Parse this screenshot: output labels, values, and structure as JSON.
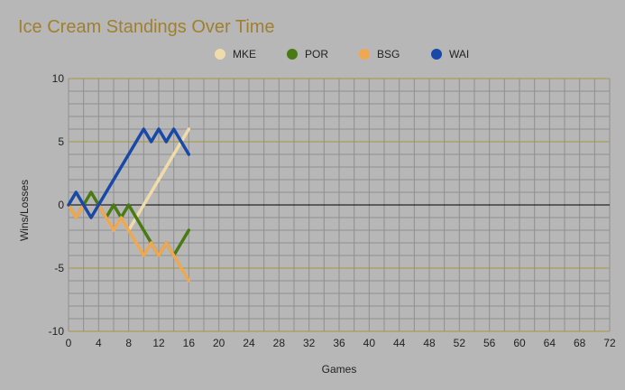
{
  "chart_data": {
    "type": "line",
    "title": "Ice Cream Standings Over Time",
    "xlabel": "Games",
    "ylabel": "Wins/Losses",
    "xlim": [
      0,
      72
    ],
    "ylim": [
      -10,
      10
    ],
    "x_ticks": [
      0,
      4,
      8,
      12,
      16,
      20,
      24,
      28,
      32,
      36,
      40,
      44,
      48,
      52,
      56,
      60,
      64,
      68,
      72
    ],
    "y_ticks": [
      10,
      5,
      0,
      -5,
      -10
    ],
    "grid": true,
    "legend_position": "top",
    "colors": {
      "background": "#b7b7b7",
      "major_grid": "#a89440",
      "minor_grid": "#8f8f8f",
      "zero_line": "#000000",
      "title": "#a08030"
    },
    "series": [
      {
        "name": "MKE",
        "color": "#f0dcaa",
        "x": [
          0,
          1,
          2,
          3,
          4,
          5,
          6,
          7,
          8,
          9,
          10,
          11,
          12,
          13,
          14,
          15,
          16
        ],
        "y": [
          0,
          -1,
          0,
          -1,
          0,
          -1,
          -2,
          -1,
          -2,
          -1,
          0,
          1,
          2,
          3,
          4,
          5,
          6
        ]
      },
      {
        "name": "POR",
        "color": "#4a7a14",
        "x": [
          0,
          1,
          2,
          3,
          4,
          5,
          6,
          7,
          8,
          9,
          10,
          11,
          12,
          13,
          14,
          15,
          16
        ],
        "y": [
          0,
          -1,
          0,
          1,
          0,
          -1,
          0,
          -1,
          0,
          -1,
          -2,
          -3,
          -4,
          -3,
          -4,
          -3,
          -2
        ]
      },
      {
        "name": "BSG",
        "color": "#f0a850",
        "x": [
          0,
          1,
          2,
          3,
          4,
          5,
          6,
          7,
          8,
          9,
          10,
          11,
          12,
          13,
          14,
          15,
          16
        ],
        "y": [
          0,
          -1,
          0,
          -1,
          0,
          -1,
          -2,
          -1,
          -2,
          -3,
          -4,
          -3,
          -4,
          -3,
          -4,
          -5,
          -6
        ]
      },
      {
        "name": "WAI",
        "color": "#1848a8",
        "x": [
          0,
          1,
          2,
          3,
          4,
          5,
          6,
          7,
          8,
          9,
          10,
          11,
          12,
          13,
          14,
          15,
          16
        ],
        "y": [
          0,
          1,
          0,
          -1,
          0,
          1,
          2,
          3,
          4,
          5,
          6,
          5,
          6,
          5,
          6,
          5,
          4
        ]
      }
    ]
  }
}
